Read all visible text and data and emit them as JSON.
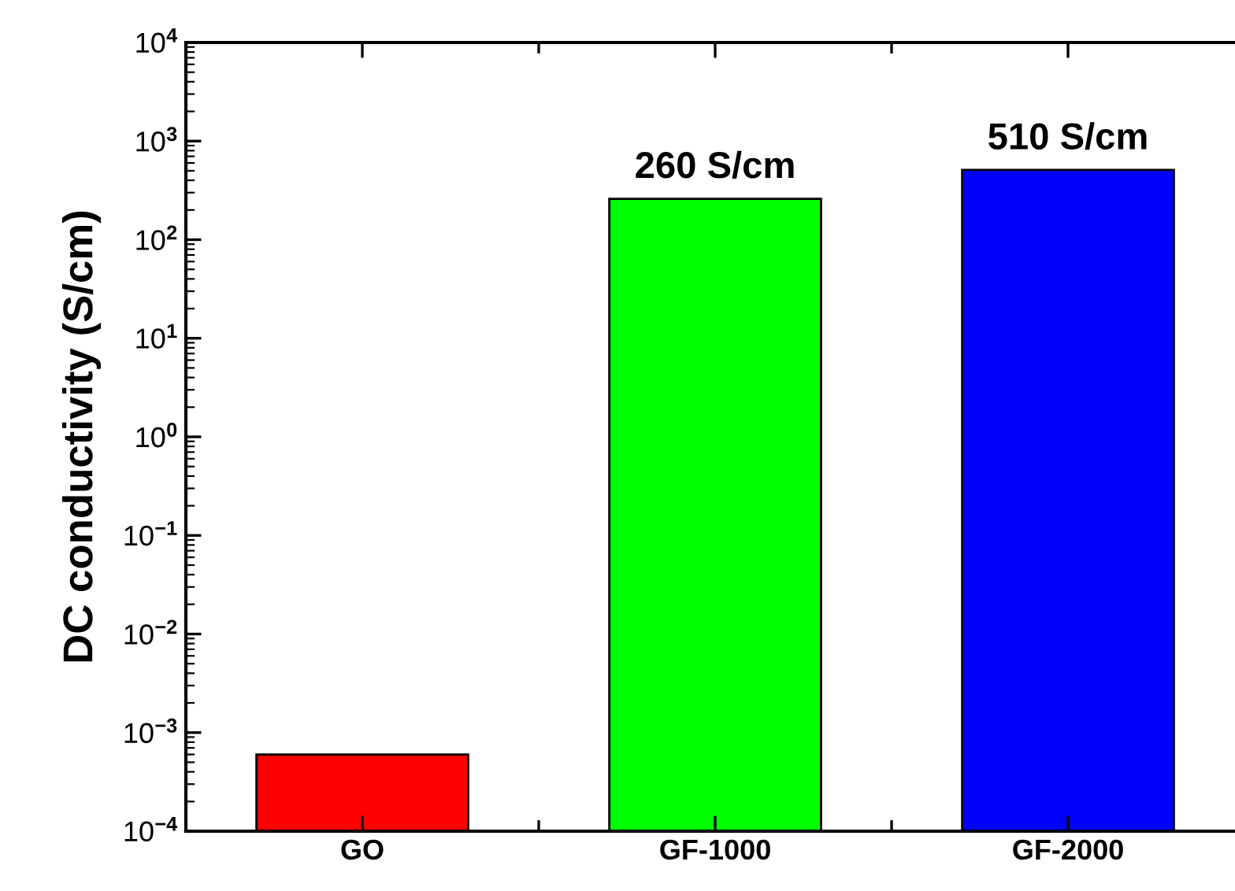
{
  "chart_data": {
    "type": "bar",
    "ylabel": "DC conductivity (S/cm)",
    "categories": [
      "GO",
      "GF-1000",
      "GF-2000"
    ],
    "values": [
      0.0006,
      260,
      510
    ],
    "colors": [
      "#ff0000",
      "#00ff00",
      "#0000ff"
    ],
    "value_labels": [
      null,
      "260 S/cm",
      "510 S/cm"
    ],
    "log": "y",
    "ylim": [
      0.0001,
      10000
    ],
    "yticks": [
      {
        "value": 0.0001,
        "label": "10$^{−4}$"
      },
      {
        "value": 0.001,
        "label": "10$^{−3}$"
      },
      {
        "value": 0.01,
        "label": "10$^{−2}$"
      },
      {
        "value": 0.1,
        "label": "10$^{−1}$"
      },
      {
        "value": 1,
        "label": "10$^{0}$"
      },
      {
        "value": 10,
        "label": "10$^{1}$"
      },
      {
        "value": 100,
        "label": "10$^{2}$"
      },
      {
        "value": 1000,
        "label": "10$^{3}$"
      },
      {
        "value": 10000,
        "label": "10$^{4}$"
      }
    ],
    "grid": false
  }
}
